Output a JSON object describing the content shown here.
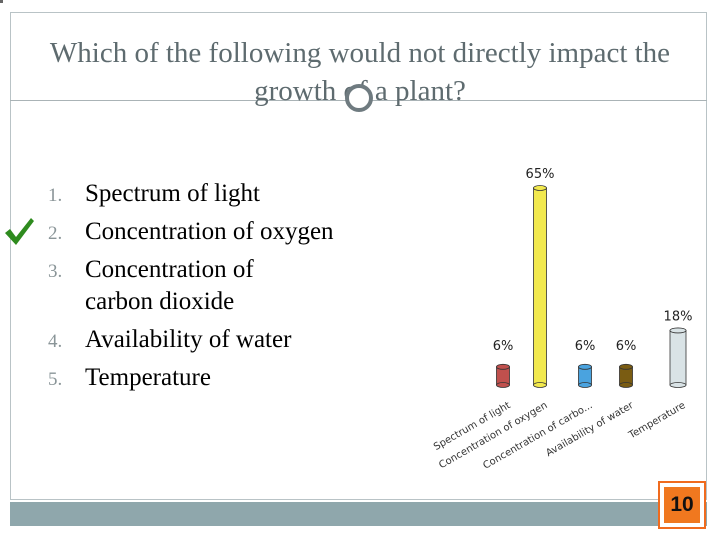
{
  "question": {
    "title": "Which of the following would not directly impact the growth of a plant?"
  },
  "options": [
    {
      "number": "1.",
      "label": "Spectrum of light",
      "correct": false
    },
    {
      "number": "2.",
      "label": "Concentration of oxygen",
      "correct": true
    },
    {
      "number": "3.",
      "label": "Concentration of carbon dioxide",
      "correct": false
    },
    {
      "number": "4.",
      "label": "Availability of water",
      "correct": false
    },
    {
      "number": "5.",
      "label": "Temperature",
      "correct": false
    }
  ],
  "chart_data": {
    "type": "bar",
    "categories": [
      "Spectrum of light",
      "Concentration of oxygen",
      "Concentration of carbo...",
      "Availability of water",
      "Temperature"
    ],
    "values": [
      6,
      65,
      6,
      6,
      18
    ],
    "data_labels": [
      "6%",
      "65%",
      "6%",
      "6%",
      "18%"
    ],
    "ylim": [
      0,
      65
    ],
    "grid": false,
    "legend": "none",
    "bar_colors": [
      "#c0504d",
      "#f2e94e",
      "#4aa3df",
      "#7a5c12",
      "#d9e3e6"
    ]
  },
  "counter": {
    "value": "10"
  },
  "colors": {
    "title": "#5e6b6f",
    "check": "#2e8b1e",
    "bottom_bar": "#8fa7ac",
    "counter_border": "#f06b1e",
    "counter_fill": "#f0781f"
  }
}
